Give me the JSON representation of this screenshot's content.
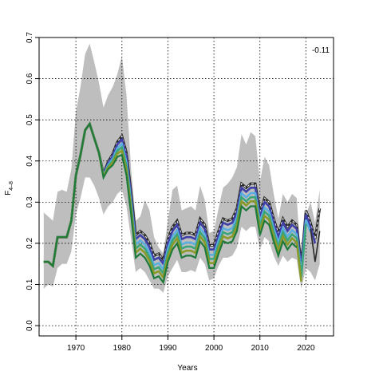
{
  "chart_data": {
    "type": "line",
    "xlabel": "Years",
    "ylabel_main": "F",
    "ylabel_sub": "4–8",
    "xlim": [
      1962,
      2026
    ],
    "ylim": [
      -0.025,
      0.7
    ],
    "xticks": [
      1970,
      1980,
      1990,
      2000,
      2010,
      2020
    ],
    "yticks": [
      0.0,
      0.1,
      0.2,
      0.3,
      0.4,
      0.5,
      0.6,
      0.7
    ],
    "grid": true,
    "annotation": "-0.11",
    "colors": {
      "band": "#bebebe",
      "retro_colors": [
        "#2b2b2b",
        "#3f3fa8",
        "#5aaee0",
        "#3aa57a",
        "#8a9a2a",
        "#1e7a3a"
      ],
      "final": "#2a2a2a"
    },
    "years": [
      1963,
      1964,
      1965,
      1966,
      1967,
      1968,
      1969,
      1970,
      1971,
      1972,
      1973,
      1974,
      1975,
      1976,
      1977,
      1978,
      1979,
      1980,
      1981,
      1982,
      1983,
      1984,
      1985,
      1986,
      1987,
      1988,
      1989,
      1990,
      1991,
      1992,
      1993,
      1994,
      1995,
      1996,
      1997,
      1998,
      1999,
      2000,
      2001,
      2002,
      2003,
      2004,
      2005,
      2006,
      2007,
      2008,
      2009,
      2010,
      2011,
      2012,
      2013,
      2014,
      2015,
      2016,
      2017,
      2018,
      2019,
      2020,
      2021,
      2022,
      2023
    ],
    "base_estimate": [
      0.155,
      0.155,
      0.145,
      0.215,
      0.215,
      0.215,
      0.255,
      0.365,
      0.415,
      0.475,
      0.49,
      0.455,
      0.42,
      0.36,
      0.38,
      0.39,
      0.41,
      0.415,
      0.365,
      0.27,
      0.165,
      0.175,
      0.165,
      0.145,
      0.115,
      0.12,
      0.105,
      0.155,
      0.185,
      0.2,
      0.165,
      0.17,
      0.17,
      0.165,
      0.205,
      0.19,
      0.14,
      0.14,
      0.175,
      0.205,
      0.2,
      0.205,
      0.23,
      0.29,
      0.28,
      0.29,
      0.29,
      0.22,
      0.255,
      0.245,
      0.205,
      0.17,
      0.205,
      0.185,
      0.2,
      0.19,
      0.095,
      0.225,
      0.195,
      0.155,
      0.23
    ],
    "band_lower": [
      0.09,
      0.1,
      0.095,
      0.14,
      0.15,
      0.15,
      0.18,
      0.27,
      0.31,
      0.36,
      0.36,
      0.34,
      0.31,
      0.27,
      0.29,
      0.3,
      0.32,
      0.33,
      0.29,
      0.21,
      0.13,
      0.14,
      0.13,
      0.11,
      0.09,
      0.09,
      0.08,
      0.12,
      0.14,
      0.16,
      0.13,
      0.13,
      0.135,
      0.13,
      0.165,
      0.15,
      0.11,
      0.115,
      0.145,
      0.165,
      0.165,
      0.17,
      0.19,
      0.24,
      0.23,
      0.24,
      0.24,
      0.185,
      0.215,
      0.205,
      0.17,
      0.145,
      0.17,
      0.155,
      0.165,
      0.16,
      0.09,
      0.14,
      0.13,
      0.11,
      0.15
    ],
    "band_upper": [
      0.275,
      0.265,
      0.255,
      0.325,
      0.33,
      0.325,
      0.38,
      0.52,
      0.58,
      0.66,
      0.685,
      0.64,
      0.59,
      0.53,
      0.56,
      0.58,
      0.61,
      0.655,
      0.56,
      0.38,
      0.255,
      0.265,
      0.305,
      0.28,
      0.215,
      0.19,
      0.175,
      0.255,
      0.33,
      0.34,
      0.28,
      0.285,
      0.29,
      0.28,
      0.34,
      0.305,
      0.225,
      0.23,
      0.285,
      0.335,
      0.345,
      0.36,
      0.385,
      0.465,
      0.44,
      0.47,
      0.46,
      0.35,
      0.41,
      0.39,
      0.32,
      0.26,
      0.32,
      0.3,
      0.32,
      0.31,
      0.14,
      0.27,
      0.3,
      0.25,
      0.33
    ],
    "retro_offsets": [
      0.055,
      0.045,
      0.032,
      0.022,
      0.012,
      0.0
    ],
    "retro_end_years": [
      2023,
      2022,
      2021,
      2020,
      2019,
      2018
    ]
  }
}
